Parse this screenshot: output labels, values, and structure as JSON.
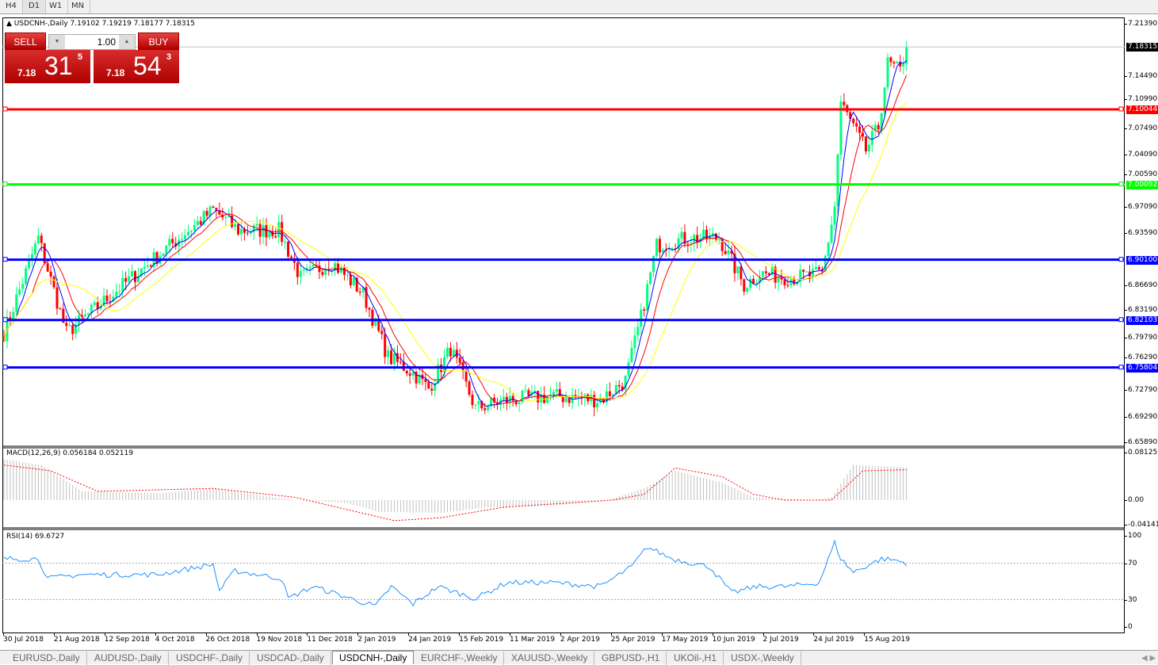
{
  "timeframes": [
    "H4",
    "D1",
    "W1",
    "MN"
  ],
  "active_timeframe": "D1",
  "chart": {
    "symbol_line": "USDCNH-,Daily  7.19102 7.19219 7.18177 7.18315",
    "current_price": "7.18315"
  },
  "trade_panel": {
    "sell_label": "SELL",
    "buy_label": "BUY",
    "lot": "1.00",
    "sell_small": "7.18",
    "sell_big": "31",
    "sell_pip": "5",
    "buy_small": "7.18",
    "buy_big": "54",
    "buy_pip": "3"
  },
  "price_axis": [
    "7.21390",
    "7.14490",
    "7.10990",
    "7.07490",
    "7.04090",
    "7.00590",
    "6.97090",
    "6.93590",
    "6.86690",
    "6.83190",
    "6.79790",
    "6.76290",
    "6.72790",
    "6.69290",
    "6.65890"
  ],
  "hlines": [
    {
      "price": "7.10044",
      "color": "#ff0000"
    },
    {
      "price": "7.00092",
      "color": "#00ff00"
    },
    {
      "price": "6.90100",
      "color": "#0000ff"
    },
    {
      "price": "6.82103",
      "color": "#0000ff"
    },
    {
      "price": "6.75804",
      "color": "#0000ff"
    }
  ],
  "colors": {
    "bull": "#00ff7f",
    "bear": "#ff0000",
    "ma_fast": "#0000ff",
    "ma_mid": "#ff0000",
    "ma_slow": "#ffff00",
    "macd_signal": "#ff0000",
    "rsi": "#1e90ff"
  },
  "chart_data": {
    "type": "candlestick",
    "price_keypoints_by_bar": [
      [
        0,
        6.804
      ],
      [
        11,
        6.93
      ],
      [
        20,
        6.804
      ],
      [
        32,
        6.846
      ],
      [
        50,
        6.909
      ],
      [
        67,
        6.967
      ],
      [
        75,
        6.94
      ],
      [
        88,
        6.94
      ],
      [
        95,
        6.877
      ],
      [
        105,
        6.898
      ],
      [
        115,
        6.856
      ],
      [
        123,
        6.772
      ],
      [
        131,
        6.751
      ],
      [
        136,
        6.73
      ],
      [
        143,
        6.783
      ],
      [
        151,
        6.704
      ],
      [
        161,
        6.715
      ],
      [
        176,
        6.72
      ],
      [
        191,
        6.715
      ],
      [
        199,
        6.741
      ],
      [
        204,
        6.825
      ],
      [
        209,
        6.92
      ],
      [
        219,
        6.93
      ],
      [
        229,
        6.93
      ],
      [
        237,
        6.867
      ],
      [
        242,
        6.883
      ],
      [
        252,
        6.877
      ],
      [
        262,
        6.882
      ],
      [
        266,
        6.972
      ],
      [
        268,
        7.109
      ],
      [
        272,
        7.077
      ],
      [
        276,
        7.046
      ],
      [
        280,
        7.077
      ],
      [
        283,
        7.161
      ],
      [
        287,
        7.151
      ],
      [
        289,
        7.183
      ]
    ],
    "macd": {
      "label": "MACD(12,26,9) 0.056184 0.052119",
      "axis": [
        "0.08125",
        "0.00",
        "-0.04141"
      ],
      "histogram_keypoints": [
        [
          0,
          0.07
        ],
        [
          12,
          0.06
        ],
        [
          25,
          0.015
        ],
        [
          50,
          0.012
        ],
        [
          67,
          0.02
        ],
        [
          80,
          0.01
        ],
        [
          93,
          0
        ],
        [
          110,
          -0.005
        ],
        [
          120,
          -0.02
        ],
        [
          140,
          -0.022
        ],
        [
          155,
          -0.012
        ],
        [
          175,
          -0.01
        ],
        [
          193,
          0
        ],
        [
          205,
          0.02
        ],
        [
          215,
          0.05
        ],
        [
          230,
          0.03
        ],
        [
          240,
          0.005
        ],
        [
          260,
          0
        ],
        [
          265,
          0.005
        ],
        [
          272,
          0.06
        ],
        [
          289,
          0.056
        ]
      ],
      "signal_keypoints": [
        [
          0,
          0.06
        ],
        [
          15,
          0.05
        ],
        [
          30,
          0.015
        ],
        [
          67,
          0.02
        ],
        [
          93,
          0.005
        ],
        [
          125,
          -0.035
        ],
        [
          140,
          -0.03
        ],
        [
          160,
          -0.012
        ],
        [
          195,
          0
        ],
        [
          205,
          0.01
        ],
        [
          215,
          0.055
        ],
        [
          230,
          0.04
        ],
        [
          240,
          0.01
        ],
        [
          250,
          0
        ],
        [
          265,
          0
        ],
        [
          275,
          0.05
        ],
        [
          289,
          0.052
        ]
      ]
    },
    "rsi": {
      "label": "RSI(14) 69.6727",
      "axis": [
        "100",
        "70",
        "30",
        "0"
      ],
      "keypoints": [
        [
          0,
          74.8
        ],
        [
          11,
          74.8
        ],
        [
          14,
          53
        ],
        [
          24,
          57.4
        ],
        [
          49,
          57.4
        ],
        [
          67,
          68.7
        ],
        [
          69,
          40
        ],
        [
          74,
          61.7
        ],
        [
          89,
          53
        ],
        [
          91,
          31.3
        ],
        [
          99,
          44.3
        ],
        [
          119,
          22.6
        ],
        [
          124,
          44.3
        ],
        [
          131,
          25.2
        ],
        [
          139,
          44.3
        ],
        [
          151,
          31.3
        ],
        [
          161,
          48.7
        ],
        [
          176,
          48.7
        ],
        [
          191,
          44.3
        ],
        [
          201,
          66
        ],
        [
          206,
          87.8
        ],
        [
          214,
          74.8
        ],
        [
          226,
          66
        ],
        [
          233,
          37.4
        ],
        [
          241,
          44.3
        ],
        [
          251,
          44.3
        ],
        [
          261,
          48.7
        ],
        [
          266,
          92.2
        ],
        [
          268,
          74.8
        ],
        [
          272,
          60
        ],
        [
          281,
          74.8
        ],
        [
          286,
          73
        ],
        [
          289,
          69.7
        ]
      ]
    },
    "date_labels": [
      "30 Jul 2018",
      "21 Aug 2018",
      "12 Sep 2018",
      "4 Oct 2018",
      "26 Oct 2018",
      "19 Nov 2018",
      "11 Dec 2018",
      "2 Jan 2019",
      "24 Jan 2019",
      "15 Feb 2019",
      "11 Mar 2019",
      "2 Apr 2019",
      "25 Apr 2019",
      "17 May 2019",
      "10 Jun 2019",
      "2 Jul 2019",
      "24 Jul 2019",
      "15 Aug 2019"
    ]
  },
  "tabs": [
    "EURUSD-,Daily",
    "AUDUSD-,Daily",
    "USDCHF-,Daily",
    "USDCAD-,Daily",
    "USDCNH-,Daily",
    "EURCHF-,Weekly",
    "XAUUSD-,Weekly",
    "GBPUSD-,H1",
    "UKOil-,H1",
    "USDX-,Weekly"
  ],
  "active_tab": "USDCNH-,Daily"
}
